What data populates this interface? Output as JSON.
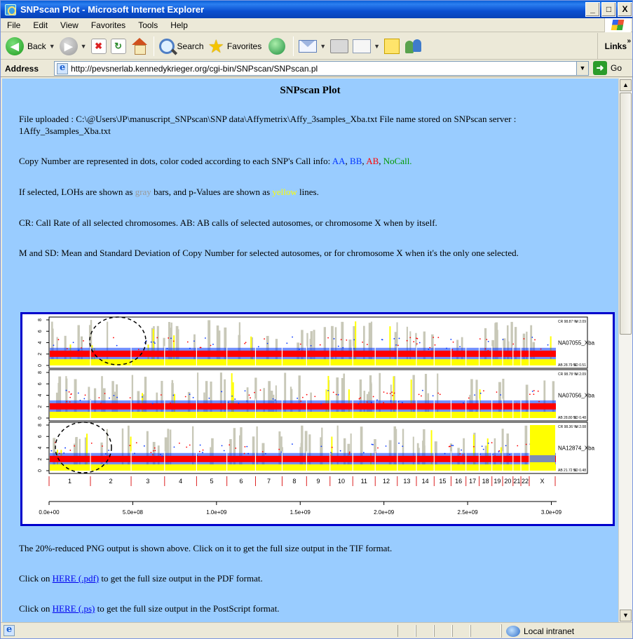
{
  "window": {
    "title": "SNPscan Plot - Microsoft Internet Explorer",
    "buttons": {
      "minimize": "_",
      "maximize": "□",
      "close": "X"
    }
  },
  "menu": {
    "items": [
      "File",
      "Edit",
      "View",
      "Favorites",
      "Tools",
      "Help"
    ]
  },
  "toolbar": {
    "back": "Back",
    "search": "Search",
    "favorites": "Favorites",
    "links": "Links"
  },
  "address": {
    "label": "Address",
    "url": "http://pevsnerlab.kennedykrieger.org/cgi-bin/SNPscan/SNPscan.pl",
    "go": "Go"
  },
  "page": {
    "title": "SNPscan Plot",
    "file_line": "File uploaded  :  C:\\@Users\\JP\\manuscript_SNPscan\\SNP data\\Affymetrix\\Affy_3samples_Xba.txt     File name stored on SNPscan server  :  1Affy_3samples_Xba.txt",
    "copy_prefix": "Copy Number are represented in dots, color coded according to each SNP's Call info: ",
    "aa": "AA",
    "bb": "BB",
    "ab": "AB",
    "nocall": "NoCall.",
    "loh_prefix": "If selected, LOHs are shown as ",
    "gray": "gray",
    "loh_middle": " bars, and p-Values are shown as ",
    "yellow": "yellow",
    "loh_suffix": " lines.",
    "cr_line": "CR: Call Rate of all selected chromosomes.   AB: AB calls of selected autosomes, or chromosome X when by itself.",
    "msd_line": "M and SD: Mean and Standard Deviation of Copy Number for selected autosomes, or for chromosome X when it's the only one selected.",
    "reduced_line": "The 20%-reduced PNG output is shown above. Click on it to get the full size output in the TIF format.",
    "pdf_prefix": "Click on ",
    "pdf_link": "HERE (.pdf)",
    "pdf_suffix": " to get the full size output in the PDF format.",
    "ps_prefix": "Click on ",
    "ps_link": "HERE (.ps)",
    "ps_suffix": " to get the full size output in the PostScript format."
  },
  "chart_data": {
    "type": "scatter",
    "samples": [
      {
        "name": "NA07055_Xba",
        "cr": "CR 98.87 %",
        "m": "M 2.09",
        "ab": "AB 28.79 %",
        "sd": "SD 0.51"
      },
      {
        "name": "NA07056_Xba",
        "cr": "CR 98.78 %",
        "m": "M 2.09",
        "ab": "AB 28.80 %",
        "sd": "SD 0.48"
      },
      {
        "name": "NA12874_Xba",
        "cr": "CR 98.36 %",
        "m": "M 2.08",
        "ab": "AB 21.72 %",
        "sd": "SD 0.48"
      }
    ],
    "y_ticks": [
      "0",
      "2",
      "4",
      "6",
      "8"
    ],
    "ylim": [
      0,
      8
    ],
    "chromosomes": [
      "1",
      "2",
      "3",
      "4",
      "5",
      "6",
      "7",
      "8",
      "9",
      "10",
      "11",
      "12",
      "13",
      "14",
      "15",
      "16",
      "17",
      "18",
      "19",
      "20",
      "21",
      "22",
      "X"
    ],
    "chromosome_boundaries": [
      0,
      247000000.0,
      490000000.0,
      690000000.0,
      881000000.0,
      1062000000.0,
      1233000000.0,
      1392000000.0,
      1538000000.0,
      1678000000.0,
      1814000000.0,
      1948000000.0,
      2080000000.0,
      2194000000.0,
      2300000000.0,
      2401000000.0,
      2490000000.0,
      2569000000.0,
      2645000000.0,
      2709000000.0,
      2771000000.0,
      2818000000.0,
      2868000000.0,
      3023000000.0
    ],
    "x_ticks": [
      "0.0e+00",
      "5.0e+08",
      "1.0e+09",
      "1.5e+09",
      "2.0e+09",
      "2.5e+09",
      "3.0e+09"
    ],
    "xlim": [
      0,
      3023000000.0
    ],
    "colors": {
      "AA": "#0033ff",
      "BB": "#0033ff",
      "AB": "#ff0000",
      "NoCall": "#009900",
      "LOH": "#c8c8b8",
      "pvalue": "#ffff00",
      "chrom_label": "#dd2222"
    },
    "highlights": [
      {
        "sample": "NA07055_Xba",
        "chromosome": "2"
      },
      {
        "sample": "NA12874_Xba",
        "chromosome": "1"
      }
    ]
  },
  "status": {
    "zone": "Local intranet"
  }
}
